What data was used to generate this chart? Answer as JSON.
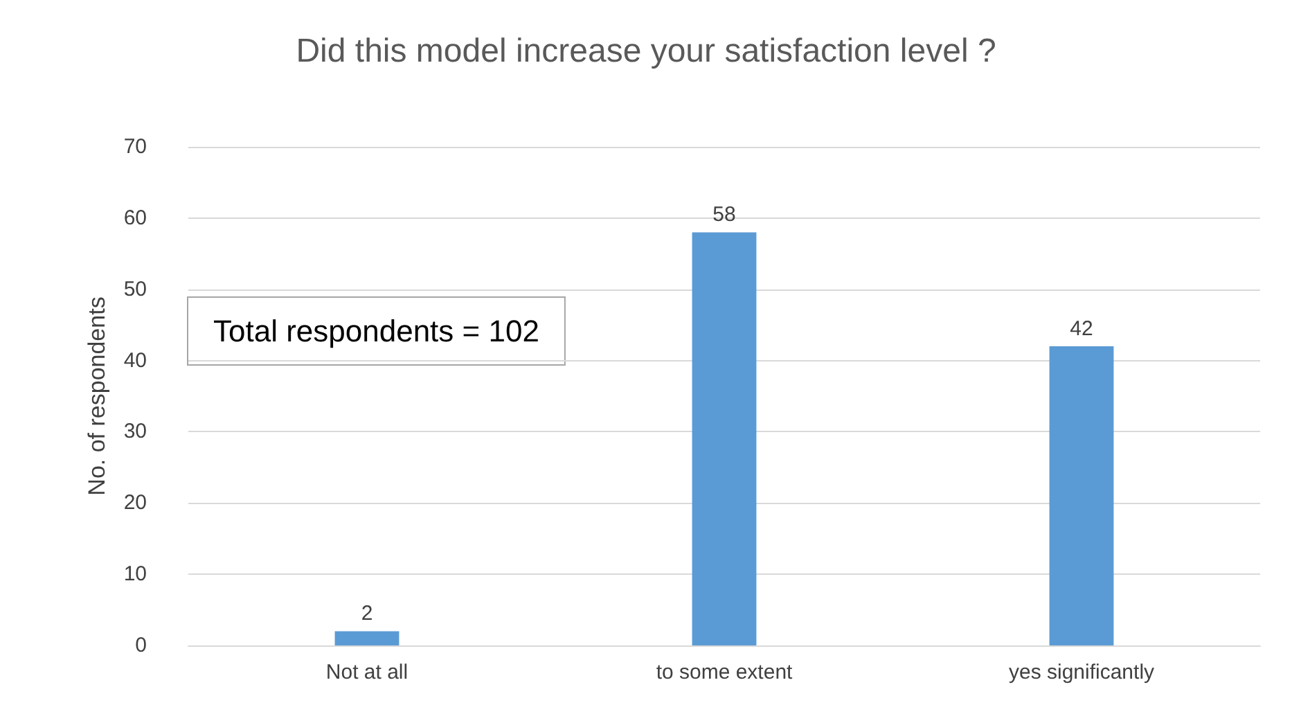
{
  "chart_data": {
    "type": "bar",
    "title": "Did this model increase your satisfaction level ?",
    "ylabel": "No. of respondents",
    "categories": [
      "Not at all",
      "to some extent",
      "yes significantly"
    ],
    "values": [
      2,
      58,
      42
    ],
    "color": "#5b9bd5",
    "ylim": [
      0,
      70
    ],
    "yticks": [
      0,
      10,
      20,
      30,
      40,
      50,
      60,
      70
    ],
    "grid": "y",
    "data_labels": true,
    "annotations": [
      "Total respondents = 102"
    ]
  }
}
